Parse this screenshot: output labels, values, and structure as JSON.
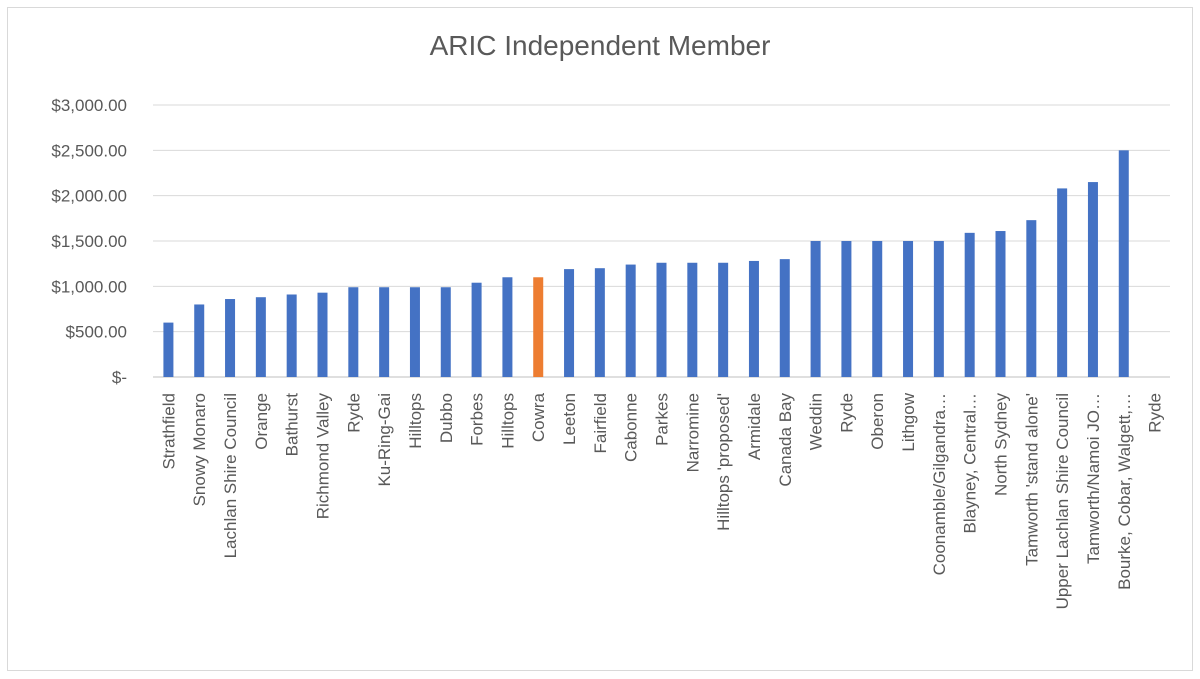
{
  "chart_data": {
    "type": "bar",
    "title": "ARIC Independent Member",
    "xlabel": "",
    "ylabel": "",
    "ylim": [
      0,
      3000
    ],
    "yticks": [
      0,
      500,
      1000,
      1500,
      2000,
      2500,
      3000
    ],
    "ytick_labels": [
      "$-",
      "$500.00",
      "$1,000.00",
      "$1,500.00",
      "$2,000.00",
      "$2,500.00",
      "$3,000.00"
    ],
    "grid": true,
    "legend": "none",
    "categories": [
      "Strathfield",
      "Snowy Monaro",
      "Lachlan Shire Council",
      "Orange",
      "Bathurst",
      "Richmond Valley",
      "Ryde",
      "Ku-Ring-Gai",
      "Hilltops",
      "Dubbo",
      "Forbes",
      "Hilltops",
      "Cowra",
      "Leeton",
      "Fairfield",
      "Cabonne",
      "Parkes",
      "Narromine",
      "Hilltops 'proposed'",
      "Armidale",
      "Canada Bay",
      "Weddin",
      "Ryde",
      "Oberon",
      "Lithgow",
      "Coonamble/Gilgandra…",
      "Blayney, Central…",
      "North Sydney",
      "Tamworth 'stand alone'",
      "Upper Lachlan Shire Council",
      "Tamworth/Namoi JO…",
      "Bourke, Cobar, Walgett,…",
      "Ryde"
    ],
    "values": [
      600,
      800,
      860,
      880,
      910,
      930,
      990,
      990,
      990,
      990,
      1040,
      1100,
      1100,
      1190,
      1200,
      1240,
      1260,
      1260,
      1260,
      1280,
      1300,
      1500,
      1500,
      1500,
      1500,
      1500,
      1590,
      1610,
      1730,
      2080,
      2150,
      2500,
      0
    ],
    "highlight_index": 12,
    "colors": {
      "bar": "#4472c4",
      "highlight": "#ed7d31",
      "grid": "#d9d9d9",
      "axis": "#bfbfbf",
      "text": "#595959"
    }
  }
}
